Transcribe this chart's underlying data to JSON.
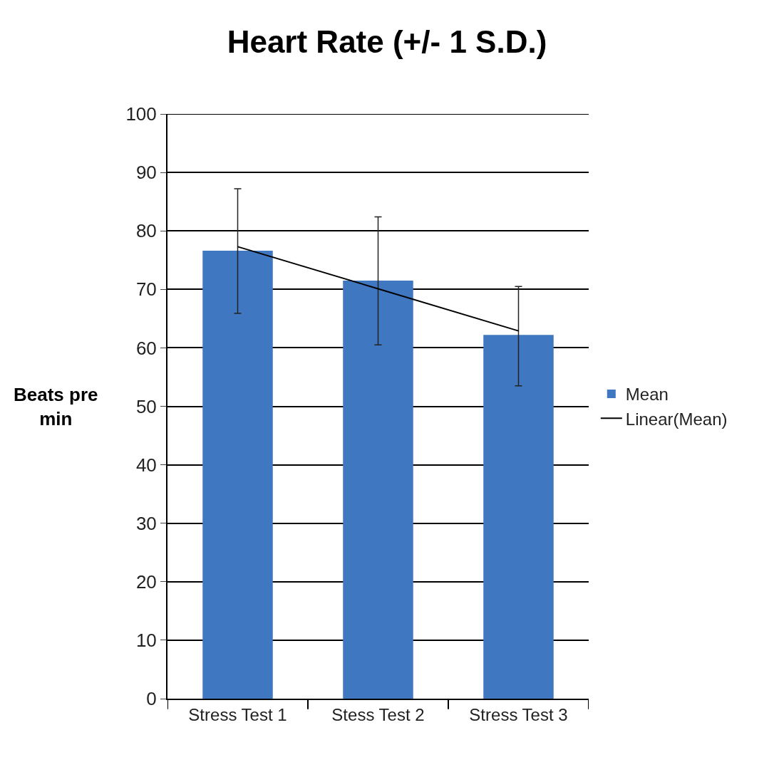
{
  "chart_data": {
    "type": "bar",
    "title": "Heart Rate (+/- 1 S.D.)",
    "ylabel": "Beats pre min",
    "categories": [
      "Stress Test 1",
      "Stess Test 2",
      "Stress Test 3"
    ],
    "series": [
      {
        "name": "Mean",
        "color": "#3f77c0",
        "values": [
          76.6,
          71.5,
          62.2
        ],
        "errors": [
          [
            65.9,
            87.2
          ],
          [
            60.5,
            82.4
          ],
          [
            53.5,
            70.5
          ]
        ]
      },
      {
        "name": "Linear(Mean)",
        "type": "line",
        "color": "#000000",
        "values": [
          77.3,
          70.1,
          62.9
        ]
      }
    ],
    "ylim": [
      0,
      100
    ],
    "yticks": [
      0,
      10,
      20,
      30,
      40,
      50,
      60,
      70,
      80,
      90,
      100
    ],
    "grid": "y",
    "legend": "right"
  }
}
